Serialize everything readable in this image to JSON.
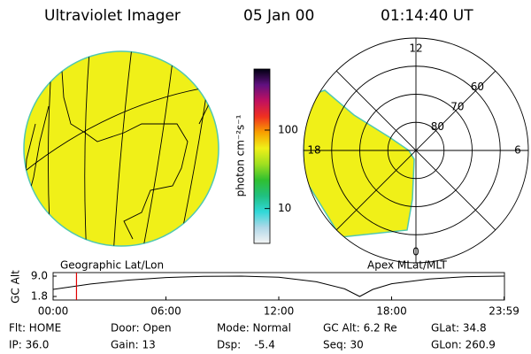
{
  "header": {
    "instrument": "Ultraviolet Imager",
    "date": "05 Jan 00",
    "time": "01:14:40 UT"
  },
  "globe": {
    "label": "Geographic Lat/Lon",
    "color": "#f0f018"
  },
  "colorbar": {
    "label": "photon cm⁻²s⁻¹",
    "log": true,
    "clim": [
      3.6,
      600
    ],
    "ticks": [
      10,
      100
    ],
    "colors": [
      "#f4f4f4",
      "#b0d8e8",
      "#30d8d8",
      "#20c080",
      "#30c030",
      "#a0e020",
      "#f0f018",
      "#f8a000",
      "#f03020",
      "#c01060",
      "#601080",
      "#000010"
    ]
  },
  "polar": {
    "label": "Apex MLat/MLT",
    "latlim": [
      50,
      90
    ],
    "rings": [
      60,
      70,
      80
    ],
    "mlt_ticks": [
      12,
      6,
      0,
      18
    ],
    "color": "#f0f018"
  },
  "alt_plot": {
    "ylabel": "GC Alt",
    "xlim": [
      0,
      24
    ],
    "ylim": [
      1.8,
      9.0
    ],
    "yticks": [
      {
        "value": 9.0,
        "label": "9.0"
      },
      {
        "value": 1.8,
        "label": "1.8"
      }
    ],
    "xticks": [
      {
        "value": 0,
        "label": "00:00"
      },
      {
        "value": 6,
        "label": "06:00"
      },
      {
        "value": 12,
        "label": "12:00"
      },
      {
        "value": 18,
        "label": "18:00"
      },
      {
        "value": 23.98,
        "label": "23:59"
      }
    ],
    "x": [
      0,
      2,
      4,
      6,
      8,
      10,
      12,
      14,
      15.5,
      16.3,
      17,
      18,
      20,
      22,
      23.98
    ],
    "values": [
      4.3,
      6.2,
      7.6,
      8.5,
      8.9,
      9.0,
      8.6,
      7.0,
      4.5,
      1.8,
      4.3,
      6.3,
      8.0,
      8.8,
      9.0
    ],
    "marker_x": 1.244,
    "marker_color": "#e00000"
  },
  "footer": {
    "rows": [
      [
        "Flt: HOME",
        "Door: Open",
        "Mode: Normal",
        "GC Alt: 6.2 Re",
        "GLat: 34.8"
      ],
      [
        "IP: 36.0",
        "Gain: 13",
        "Dsp:    -5.4",
        "Seq: 30",
        "GLon: 260.9"
      ]
    ]
  }
}
